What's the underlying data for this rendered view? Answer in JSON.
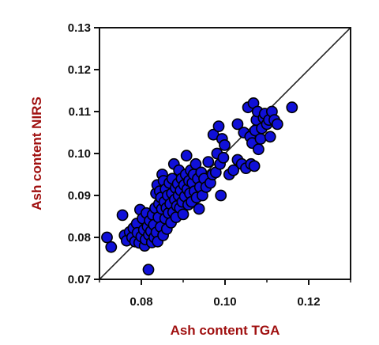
{
  "chart_data": {
    "type": "scatter",
    "xlabel": "Ash content TGA",
    "ylabel": "Ash content NIRS",
    "xlim": [
      0.07,
      0.13
    ],
    "ylim": [
      0.07,
      0.13
    ],
    "x_ticks": [
      "0.08",
      "0.10",
      "0.12"
    ],
    "y_ticks": [
      "0.07",
      "0.08",
      "0.09",
      "0.10",
      "0.11",
      "0.12",
      "0.13"
    ],
    "reference_line": {
      "from": [
        0.07,
        0.07
      ],
      "to": [
        0.13,
        0.13
      ]
    },
    "colors": {
      "marker_fill": "#1010d8",
      "marker_edge": "#000000",
      "axis_title": "#a01010",
      "line": "#222222"
    },
    "series": [
      {
        "points": [
          [
            0.0718,
            0.08
          ],
          [
            0.0728,
            0.0777
          ],
          [
            0.0755,
            0.0853
          ],
          [
            0.076,
            0.0805
          ],
          [
            0.0765,
            0.0792
          ],
          [
            0.0772,
            0.0813
          ],
          [
            0.0778,
            0.08
          ],
          [
            0.0781,
            0.0822
          ],
          [
            0.0785,
            0.079
          ],
          [
            0.0789,
            0.0833
          ],
          [
            0.0791,
            0.0811
          ],
          [
            0.0795,
            0.0787
          ],
          [
            0.0797,
            0.0866
          ],
          [
            0.08,
            0.0802
          ],
          [
            0.0803,
            0.0845
          ],
          [
            0.0806,
            0.0818
          ],
          [
            0.0808,
            0.078
          ],
          [
            0.081,
            0.0795
          ],
          [
            0.0812,
            0.0858
          ],
          [
            0.0815,
            0.0826
          ],
          [
            0.0817,
            0.0723
          ],
          [
            0.0818,
            0.0806
          ],
          [
            0.082,
            0.084
          ],
          [
            0.0823,
            0.0815
          ],
          [
            0.0825,
            0.0788
          ],
          [
            0.0827,
            0.0854
          ],
          [
            0.083,
            0.083
          ],
          [
            0.0831,
            0.08
          ],
          [
            0.0833,
            0.087
          ],
          [
            0.0835,
            0.0905
          ],
          [
            0.0836,
            0.0812
          ],
          [
            0.0838,
            0.0925
          ],
          [
            0.0839,
            0.079
          ],
          [
            0.0841,
            0.0848
          ],
          [
            0.0842,
            0.088
          ],
          [
            0.0844,
            0.091
          ],
          [
            0.0846,
            0.0825
          ],
          [
            0.0847,
            0.0895
          ],
          [
            0.0849,
            0.0868
          ],
          [
            0.085,
            0.095
          ],
          [
            0.0852,
            0.0805
          ],
          [
            0.0853,
            0.0935
          ],
          [
            0.0855,
            0.0885
          ],
          [
            0.0857,
            0.0845
          ],
          [
            0.0858,
            0.0915
          ],
          [
            0.086,
            0.087
          ],
          [
            0.0861,
            0.082
          ],
          [
            0.0863,
            0.09
          ],
          [
            0.0865,
            0.0858
          ],
          [
            0.0867,
            0.093
          ],
          [
            0.0869,
            0.088
          ],
          [
            0.0871,
            0.0835
          ],
          [
            0.0873,
            0.0905
          ],
          [
            0.0874,
            0.094
          ],
          [
            0.0876,
            0.086
          ],
          [
            0.0878,
            0.0975
          ],
          [
            0.088,
            0.089
          ],
          [
            0.0882,
            0.0918
          ],
          [
            0.0883,
            0.0848
          ],
          [
            0.0885,
            0.0875
          ],
          [
            0.0887,
            0.0928
          ],
          [
            0.0889,
            0.09
          ],
          [
            0.089,
            0.096
          ],
          [
            0.0892,
            0.087
          ],
          [
            0.0894,
            0.0912
          ],
          [
            0.0896,
            0.094
          ],
          [
            0.0898,
            0.0885
          ],
          [
            0.09,
            0.0855
          ],
          [
            0.0902,
            0.0925
          ],
          [
            0.0904,
            0.0898
          ],
          [
            0.0906,
            0.095
          ],
          [
            0.0908,
            0.0995
          ],
          [
            0.091,
            0.0915
          ],
          [
            0.0912,
            0.0878
          ],
          [
            0.0914,
            0.0935
          ],
          [
            0.0916,
            0.0905
          ],
          [
            0.0918,
            0.096
          ],
          [
            0.092,
            0.0885
          ],
          [
            0.0922,
            0.093
          ],
          [
            0.0925,
            0.095
          ],
          [
            0.0927,
            0.091
          ],
          [
            0.093,
            0.0975
          ],
          [
            0.0932,
            0.0895
          ],
          [
            0.0935,
            0.094
          ],
          [
            0.0938,
            0.0868
          ],
          [
            0.094,
            0.092
          ],
          [
            0.0943,
            0.0955
          ],
          [
            0.0946,
            0.09
          ],
          [
            0.095,
            0.094
          ],
          [
            0.0955,
            0.092
          ],
          [
            0.096,
            0.098
          ],
          [
            0.0965,
            0.093
          ],
          [
            0.097,
            0.095
          ],
          [
            0.0972,
            0.1045
          ],
          [
            0.0978,
            0.0955
          ],
          [
            0.0981,
            0.1
          ],
          [
            0.0985,
            0.1065
          ],
          [
            0.0988,
            0.0975
          ],
          [
            0.099,
            0.09
          ],
          [
            0.0993,
            0.1035
          ],
          [
            0.0996,
            0.099
          ],
          [
            0.0999,
            0.102
          ],
          [
            0.101,
            0.095
          ],
          [
            0.102,
            0.096
          ],
          [
            0.103,
            0.0985
          ],
          [
            0.103,
            0.107
          ],
          [
            0.104,
            0.0975
          ],
          [
            0.1045,
            0.105
          ],
          [
            0.105,
            0.0965
          ],
          [
            0.1055,
            0.111
          ],
          [
            0.106,
            0.104
          ],
          [
            0.1062,
            0.0975
          ],
          [
            0.1065,
            0.1025
          ],
          [
            0.1068,
            0.112
          ],
          [
            0.107,
            0.097
          ],
          [
            0.1072,
            0.1055
          ],
          [
            0.1075,
            0.108
          ],
          [
            0.1078,
            0.11
          ],
          [
            0.108,
            0.101
          ],
          [
            0.1085,
            0.1035
          ],
          [
            0.1088,
            0.106
          ],
          [
            0.1092,
            0.1085
          ],
          [
            0.1095,
            0.1095
          ],
          [
            0.11,
            0.107
          ],
          [
            0.1105,
            0.108
          ],
          [
            0.1108,
            0.104
          ],
          [
            0.1112,
            0.11
          ],
          [
            0.1118,
            0.108
          ],
          [
            0.1125,
            0.107
          ],
          [
            0.116,
            0.111
          ]
        ]
      }
    ]
  }
}
